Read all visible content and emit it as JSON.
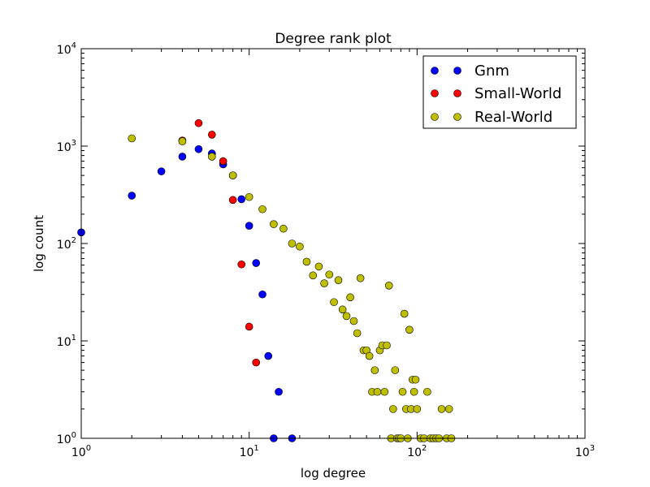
{
  "chart_data": {
    "type": "scatter",
    "title": "Degree rank plot",
    "xlabel": "log degree",
    "ylabel": "log count",
    "xscale": "log",
    "yscale": "log",
    "xlim": [
      1,
      1000
    ],
    "ylim": [
      1,
      10000
    ],
    "legend": {
      "placement": "top-right"
    },
    "x_ticks": [
      {
        "value": 1,
        "base": "10",
        "exp": "0"
      },
      {
        "value": 10,
        "base": "10",
        "exp": "1"
      },
      {
        "value": 100,
        "base": "10",
        "exp": "2"
      },
      {
        "value": 1000,
        "base": "10",
        "exp": "3"
      }
    ],
    "y_ticks": [
      {
        "value": 1,
        "base": "10",
        "exp": "0"
      },
      {
        "value": 10,
        "base": "10",
        "exp": "1"
      },
      {
        "value": 100,
        "base": "10",
        "exp": "2"
      },
      {
        "value": 1000,
        "base": "10",
        "exp": "3"
      },
      {
        "value": 10000,
        "base": "10",
        "exp": "4"
      }
    ],
    "series": [
      {
        "name": "Gnm",
        "color": "#0000ff",
        "points": [
          [
            1,
            130
          ],
          [
            2,
            310
          ],
          [
            3,
            550
          ],
          [
            4,
            780
          ],
          [
            5,
            930
          ],
          [
            6,
            840
          ],
          [
            7,
            650
          ],
          [
            8,
            500
          ],
          [
            9,
            285
          ],
          [
            10,
            152
          ],
          [
            11,
            63
          ],
          [
            12,
            30
          ],
          [
            13,
            7
          ],
          [
            15,
            3
          ],
          [
            14,
            1
          ],
          [
            18,
            1
          ]
        ]
      },
      {
        "name": "Small-World",
        "color": "#ff0000",
        "points": [
          [
            4,
            1140
          ],
          [
            5,
            1720
          ],
          [
            6,
            1310
          ],
          [
            7,
            700
          ],
          [
            8,
            280
          ],
          [
            9,
            61
          ],
          [
            10,
            14
          ],
          [
            11,
            6
          ]
        ]
      },
      {
        "name": "Real-World",
        "color": "#bfbf00",
        "points": [
          [
            2,
            1200
          ],
          [
            4,
            1120
          ],
          [
            6,
            780
          ],
          [
            8,
            500
          ],
          [
            10,
            300
          ],
          [
            12,
            225
          ],
          [
            14,
            158
          ],
          [
            16,
            142
          ],
          [
            18,
            100
          ],
          [
            20,
            93
          ],
          [
            22,
            65
          ],
          [
            24,
            47
          ],
          [
            26,
            58
          ],
          [
            28,
            39
          ],
          [
            30,
            48
          ],
          [
            32,
            25
          ],
          [
            34,
            42
          ],
          [
            36,
            21
          ],
          [
            38,
            18
          ],
          [
            40,
            28
          ],
          [
            42,
            16
          ],
          [
            44,
            12
          ],
          [
            46,
            44
          ],
          [
            48,
            8
          ],
          [
            50,
            8
          ],
          [
            52,
            7
          ],
          [
            54,
            3
          ],
          [
            56,
            5
          ],
          [
            58,
            3
          ],
          [
            60,
            8
          ],
          [
            62,
            9
          ],
          [
            64,
            3
          ],
          [
            66,
            9
          ],
          [
            68,
            37
          ],
          [
            70,
            1
          ],
          [
            72,
            2
          ],
          [
            74,
            5
          ],
          [
            76,
            1
          ],
          [
            78,
            1
          ],
          [
            80,
            1
          ],
          [
            82,
            3
          ],
          [
            84,
            19
          ],
          [
            86,
            2
          ],
          [
            88,
            1
          ],
          [
            90,
            13
          ],
          [
            92,
            2
          ],
          [
            94,
            4
          ],
          [
            96,
            3
          ],
          [
            98,
            4
          ],
          [
            100,
            2
          ],
          [
            105,
            1
          ],
          [
            110,
            1
          ],
          [
            115,
            3
          ],
          [
            120,
            1
          ],
          [
            125,
            1
          ],
          [
            130,
            1
          ],
          [
            135,
            1
          ],
          [
            140,
            2
          ],
          [
            150,
            1
          ],
          [
            155,
            2
          ],
          [
            160,
            1
          ]
        ]
      }
    ]
  }
}
